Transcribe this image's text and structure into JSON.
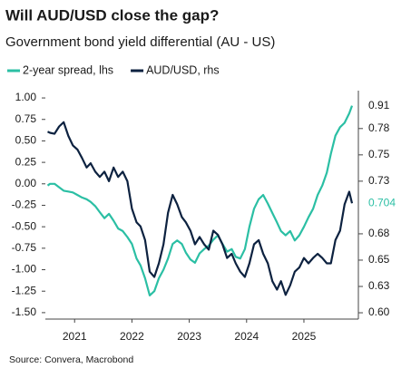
{
  "chart_data": {
    "type": "line",
    "title": "Will AUD/USD close the gap?",
    "subtitle": "Government bond yield differential (AU - US)",
    "source": "Source: Convera, Macrobond",
    "x": [
      2020.53,
      2020.57,
      2020.65,
      2020.73,
      2020.81,
      2020.89,
      2020.97,
      2021.05,
      2021.13,
      2021.21,
      2021.28,
      2021.36,
      2021.44,
      2021.52,
      2021.6,
      2021.68,
      2021.76,
      2021.84,
      2021.92,
      2022.0,
      2022.08,
      2022.15,
      2022.23,
      2022.31,
      2022.39,
      2022.47,
      2022.55,
      2022.63,
      2022.71,
      2022.79,
      2022.87,
      2022.94,
      2023.02,
      2023.1,
      2023.18,
      2023.26,
      2023.34,
      2023.42,
      2023.5,
      2023.58,
      2023.66,
      2023.74,
      2023.81,
      2023.89,
      2023.97,
      2024.05,
      2024.13,
      2024.21,
      2024.29,
      2024.37,
      2024.45,
      2024.53,
      2024.6,
      2024.68,
      2024.76,
      2024.84,
      2024.92,
      2025.0,
      2025.08,
      2025.16,
      2025.24,
      2025.32,
      2025.4,
      2025.47,
      2025.55,
      2025.63,
      2025.71,
      2025.79,
      2025.84
    ],
    "series": [
      {
        "name": "2-year spread, lhs",
        "color": "#2bbfa4",
        "axis": "y",
        "values": [
          -0.02,
          0.0,
          0.0,
          -0.04,
          -0.08,
          -0.09,
          -0.1,
          -0.13,
          -0.16,
          -0.18,
          -0.21,
          -0.26,
          -0.33,
          -0.4,
          -0.35,
          -0.43,
          -0.52,
          -0.55,
          -0.62,
          -0.7,
          -0.87,
          -0.95,
          -1.1,
          -1.3,
          -1.25,
          -1.1,
          -1.0,
          -0.87,
          -0.7,
          -0.66,
          -0.7,
          -0.8,
          -0.88,
          -0.92,
          -0.81,
          -0.76,
          -0.72,
          -0.65,
          -0.6,
          -0.7,
          -0.79,
          -0.76,
          -0.85,
          -0.87,
          -0.76,
          -0.5,
          -0.29,
          -0.18,
          -0.13,
          -0.23,
          -0.34,
          -0.45,
          -0.55,
          -0.6,
          -0.55,
          -0.66,
          -0.6,
          -0.5,
          -0.39,
          -0.29,
          -0.13,
          -0.02,
          0.13,
          0.35,
          0.56,
          0.66,
          0.71,
          0.82,
          0.91
        ],
        "end_label": "0.91",
        "end_label_color": "#1a1a1a"
      },
      {
        "name": "AUD/USD, rhs",
        "color": "#0d2240",
        "axis": "y2",
        "values": [
          0.772,
          0.771,
          0.77,
          0.777,
          0.781,
          0.768,
          0.759,
          0.755,
          0.747,
          0.738,
          0.742,
          0.734,
          0.729,
          0.734,
          0.725,
          0.738,
          0.729,
          0.734,
          0.725,
          0.699,
          0.686,
          0.682,
          0.669,
          0.639,
          0.634,
          0.647,
          0.665,
          0.695,
          0.712,
          0.703,
          0.691,
          0.686,
          0.678,
          0.665,
          0.672,
          0.665,
          0.66,
          0.678,
          0.674,
          0.665,
          0.652,
          0.656,
          0.647,
          0.639,
          0.634,
          0.647,
          0.665,
          0.669,
          0.656,
          0.647,
          0.63,
          0.622,
          0.63,
          0.617,
          0.626,
          0.639,
          0.643,
          0.652,
          0.647,
          0.652,
          0.656,
          0.652,
          0.647,
          0.647,
          0.669,
          0.678,
          0.703,
          0.715,
          0.704
        ],
        "end_label": "0.704",
        "end_label_color": "#2bbfa4"
      }
    ],
    "xlim": [
      2020.49,
      2025.95
    ],
    "xticks": [
      2021,
      2022,
      2023,
      2024,
      2025
    ],
    "ylim": [
      -1.575,
      1.085
    ],
    "yticks": [
      {
        "value": 1.0,
        "label": "1.00"
      },
      {
        "value": 0.75,
        "label": "0.75"
      },
      {
        "value": 0.5,
        "label": "0.50"
      },
      {
        "value": 0.25,
        "label": "0.25"
      },
      {
        "value": 0.0,
        "label": "0.00"
      },
      {
        "value": -0.25,
        "label": "-0.25"
      },
      {
        "value": -0.5,
        "label": "-0.50"
      },
      {
        "value": -0.75,
        "label": "-0.75"
      },
      {
        "value": -1.0,
        "label": "-1.00"
      },
      {
        "value": -1.25,
        "label": "-1.25"
      },
      {
        "value": -1.5,
        "label": "-1.50"
      }
    ],
    "y2lim": [
      0.594,
      0.811
    ],
    "y2ticks": [
      {
        "value": 0.775,
        "label": "0.78"
      },
      {
        "value": 0.75,
        "label": "0.75"
      },
      {
        "value": 0.725,
        "label": "0.73"
      },
      {
        "value": 0.675,
        "label": "0.68"
      },
      {
        "value": 0.65,
        "label": "0.65"
      },
      {
        "value": 0.625,
        "label": "0.63"
      },
      {
        "value": 0.6,
        "label": "0.60"
      }
    ],
    "grid": false
  }
}
